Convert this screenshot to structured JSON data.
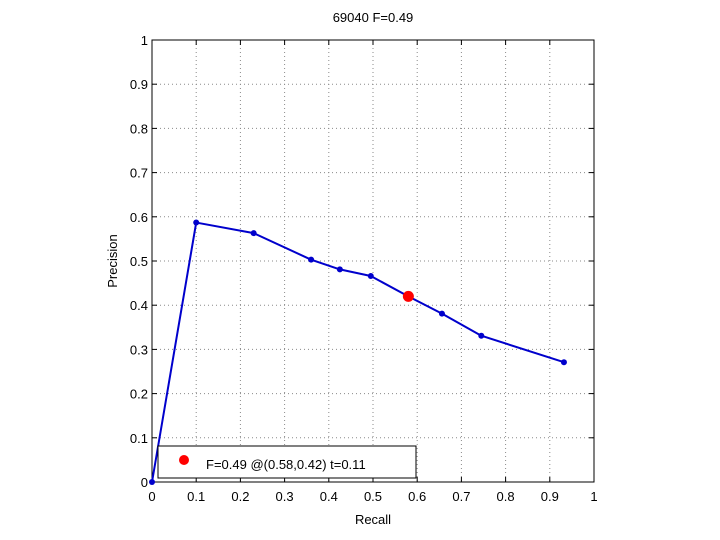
{
  "chart_data": {
    "type": "line",
    "title": "69040 F=0.49",
    "xlabel": "Recall",
    "ylabel": "Precision",
    "xlim": [
      0,
      1
    ],
    "ylim": [
      0,
      1
    ],
    "xticks": [
      "0",
      "0.1",
      "0.2",
      "0.3",
      "0.4",
      "0.5",
      "0.6",
      "0.7",
      "0.8",
      "0.9",
      "1"
    ],
    "yticks": [
      "0",
      "0.1",
      "0.2",
      "0.3",
      "0.4",
      "0.5",
      "0.6",
      "0.7",
      "0.8",
      "0.9",
      "1"
    ],
    "grid": true,
    "series": [
      {
        "color": "#0000cc",
        "points": [
          {
            "x": 0.0,
            "y": 0.0
          },
          {
            "x": 0.1,
            "y": 0.587
          },
          {
            "x": 0.23,
            "y": 0.563
          },
          {
            "x": 0.36,
            "y": 0.503
          },
          {
            "x": 0.425,
            "y": 0.481
          },
          {
            "x": 0.495,
            "y": 0.466
          },
          {
            "x": 0.58,
            "y": 0.42
          },
          {
            "x": 0.656,
            "y": 0.381
          },
          {
            "x": 0.745,
            "y": 0.331
          },
          {
            "x": 0.932,
            "y": 0.271
          }
        ]
      }
    ],
    "highlight": {
      "x": 0.58,
      "y": 0.42,
      "color": "#ff0000"
    },
    "legend": {
      "label": "F=0.49 @(0.58,0.42) t=0.11",
      "placement": "bottom-left"
    }
  }
}
